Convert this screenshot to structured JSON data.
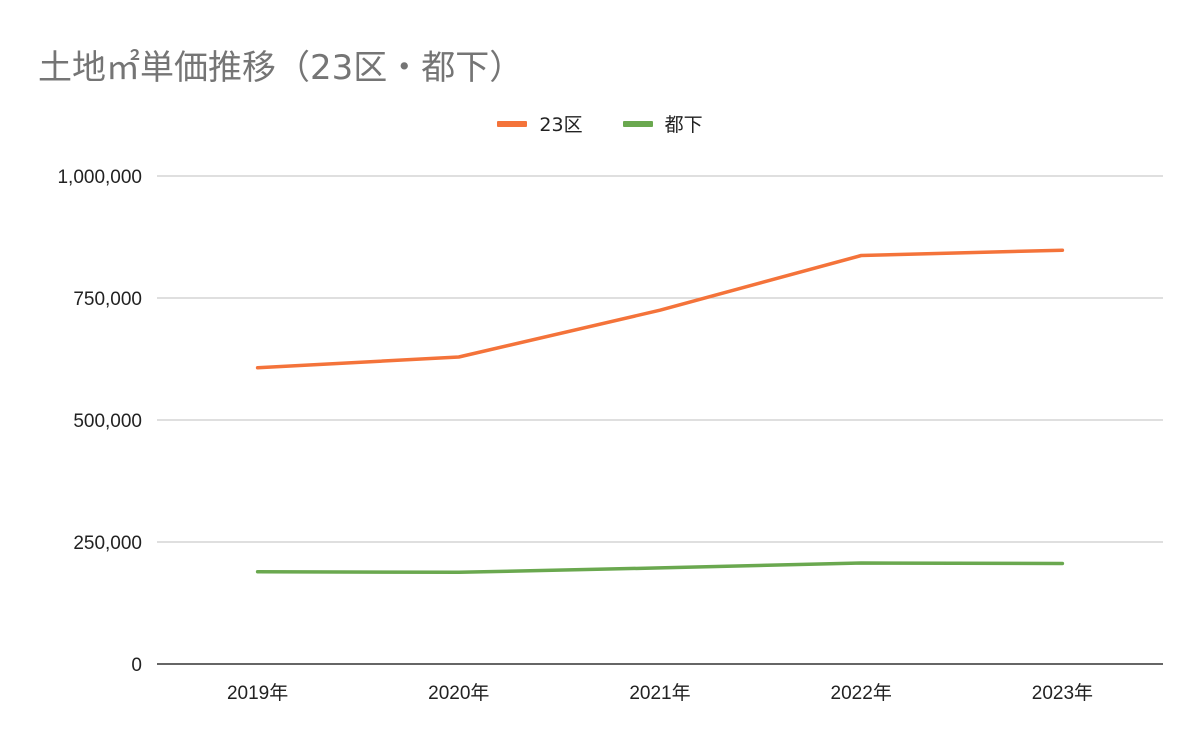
{
  "chart_data": {
    "type": "line",
    "title": "土地㎡単価推移（23区・都下）",
    "categories": [
      "2019年",
      "2020年",
      "2021年",
      "2022年",
      "2023年"
    ],
    "series": [
      {
        "name": "23区",
        "color": "#F4733A",
        "values": [
          607000,
          629000,
          725000,
          837000,
          848000
        ]
      },
      {
        "name": "都下",
        "color": "#6AA84F",
        "values": [
          189000,
          188000,
          197000,
          207000,
          206000
        ]
      }
    ],
    "ylim": [
      0,
      1000000
    ],
    "yticks": [
      0,
      250000,
      500000,
      750000,
      1000000
    ],
    "ytick_labels": [
      "0",
      "250,000",
      "500,000",
      "750,000",
      "1,000,000"
    ],
    "xlabel": "",
    "ylabel": "",
    "grid": true,
    "legend_position": "top-center",
    "colors": {
      "grid": "#cccccc",
      "axis": "#333333",
      "title": "#757575"
    }
  }
}
